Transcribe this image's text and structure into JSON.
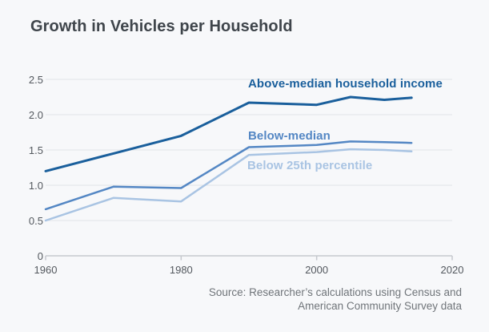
{
  "title": "Growth in Vehicles per Household",
  "source": {
    "line1": "Source: Researcher’s calculations using Census and",
    "line2": "American Community Survey data"
  },
  "colors": {
    "background": "#f7f8fa",
    "title_text": "#3f454b",
    "gridline": "#e2e4e8",
    "axis_line": "#c6c9ce",
    "tick_label": "#53585e",
    "source_text": "#70757a"
  },
  "chart_data": {
    "type": "line",
    "title": "Growth in Vehicles per Household",
    "x": [
      1960,
      1970,
      1980,
      1990,
      2000,
      2005,
      2010,
      2014
    ],
    "series": [
      {
        "name": "Above-median household income",
        "color": "#1a5f9c",
        "values": [
          1.2,
          1.45,
          1.7,
          2.17,
          2.14,
          2.25,
          2.21,
          2.24
        ]
      },
      {
        "name": "Below-median",
        "color": "#5487c4",
        "values": [
          0.66,
          0.98,
          0.96,
          1.54,
          1.57,
          1.62,
          1.61,
          1.6
        ]
      },
      {
        "name": "Below 25th percentile",
        "color": "#a9c4e3",
        "values": [
          0.5,
          0.82,
          0.77,
          1.43,
          1.47,
          1.51,
          1.5,
          1.48
        ]
      }
    ],
    "xlabel": "",
    "ylabel": "",
    "xlim": [
      1960,
      2020
    ],
    "ylim": [
      0,
      2.5
    ],
    "x_ticks": [
      {
        "value": 1960,
        "label": "1960"
      },
      {
        "value": 1980,
        "label": "1980"
      },
      {
        "value": 2000,
        "label": "2000"
      },
      {
        "value": 2020,
        "label": "2020"
      }
    ],
    "y_ticks": [
      {
        "value": 0,
        "label": "0"
      },
      {
        "value": 0.5,
        "label": "0.5"
      },
      {
        "value": 1.0,
        "label": "1.0"
      },
      {
        "value": 1.5,
        "label": "1.5"
      },
      {
        "value": 2.0,
        "label": "2.0"
      },
      {
        "value": 2.5,
        "label": "2.5"
      }
    ],
    "grid": "horizontal",
    "legend_position": "inline-labels"
  }
}
